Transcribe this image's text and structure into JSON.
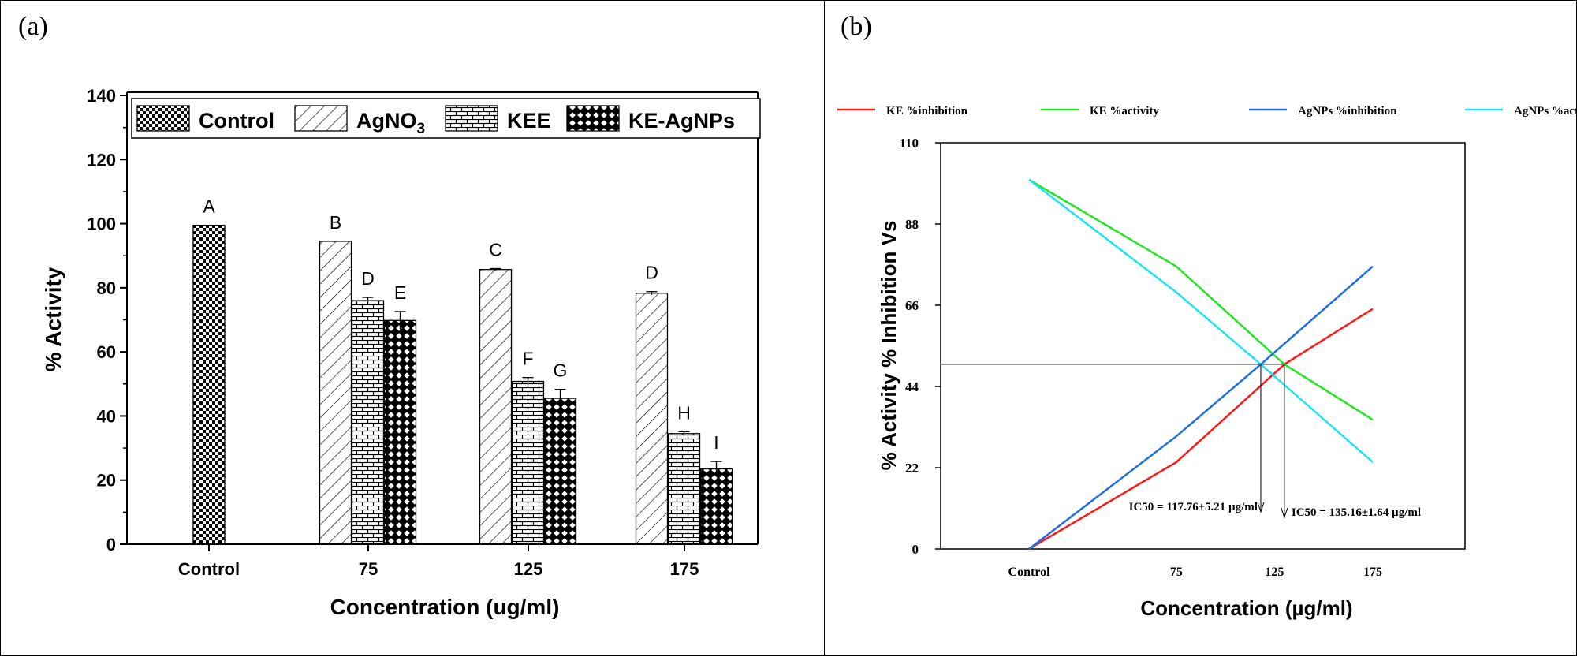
{
  "panels": {
    "a": {
      "label": "(a)",
      "chart_data": {
        "type": "bar",
        "title": "",
        "xlabel": "Concentration (ug/ml)",
        "ylabel": "% Activity",
        "ylim": [
          0,
          140
        ],
        "yticks": [
          0,
          20,
          40,
          60,
          80,
          100,
          120,
          140
        ],
        "grid": false,
        "legend_position": "top",
        "categories": [
          "Control",
          "75",
          "125",
          "175"
        ],
        "series": [
          {
            "name": "Control",
            "pattern": "checker",
            "values": [
              99.5,
              null,
              null,
              null
            ],
            "errors": [
              0,
              0,
              0,
              0
            ],
            "letters": [
              "A",
              null,
              null,
              null
            ]
          },
          {
            "name": "AgNO3",
            "legend_base": "AgNO",
            "legend_sub": "3",
            "pattern": "hatch",
            "values": [
              null,
              94.5,
              85.7,
              78.3
            ],
            "errors": [
              0,
              0,
              0.3,
              0.5
            ],
            "letters": [
              null,
              "B",
              "C",
              "D"
            ]
          },
          {
            "name": "KEE",
            "pattern": "brick",
            "values": [
              null,
              76.0,
              50.8,
              34.5
            ],
            "errors": [
              0,
              1.0,
              1.2,
              0.6
            ],
            "letters": [
              null,
              "D",
              "F",
              "H"
            ]
          },
          {
            "name": "KE-AgNPs",
            "pattern": "diamond",
            "values": [
              null,
              69.8,
              45.5,
              23.5
            ],
            "errors": [
              0,
              2.8,
              2.8,
              2.3
            ],
            "letters": [
              null,
              "E",
              "G",
              "I"
            ]
          }
        ]
      }
    },
    "b": {
      "label": "(b)",
      "chart_data": {
        "type": "line",
        "title": "",
        "xlabel": "Concentration (µg/ml)",
        "ylabel": "% Activity % Inhibition Vs",
        "x": [
          0,
          75,
          125,
          175
        ],
        "xtick_labels": [
          "Control",
          "75",
          "125",
          "175"
        ],
        "xlim": [
          -45,
          222
        ],
        "ylim": [
          0,
          110
        ],
        "yticks": [
          0,
          22,
          44,
          66,
          88,
          110
        ],
        "grid": false,
        "legend_position": "top",
        "series": [
          {
            "name": "KE %inhibition",
            "color": "#ff1a1a",
            "x": [
              0,
              75,
              130,
              175
            ],
            "values": [
              0,
              23.5,
              50,
              65
            ]
          },
          {
            "name": "KE %activity",
            "color": "#22e622",
            "x": [
              0,
              75,
              130,
              175
            ],
            "values": [
              100,
              76.5,
              50,
              35
            ]
          },
          {
            "name": "AgNPs %inhibition",
            "color": "#1f6fe0",
            "x": [
              0,
              75,
              118,
              175
            ],
            "values": [
              0,
              30.5,
              50,
              76.5
            ]
          },
          {
            "name": "AgNPs %activity",
            "color": "#1de4f0",
            "x": [
              0,
              75,
              118,
              175
            ],
            "values": [
              100,
              69.5,
              50,
              23.5
            ]
          }
        ],
        "reference_line": {
          "y": 50
        },
        "annotations": [
          {
            "text": "IC50 = 117.76±5.21 µg/ml",
            "x": 118
          },
          {
            "text": "IC50 = 135.16±1.64 µg/ml",
            "x": 130
          }
        ]
      }
    }
  }
}
